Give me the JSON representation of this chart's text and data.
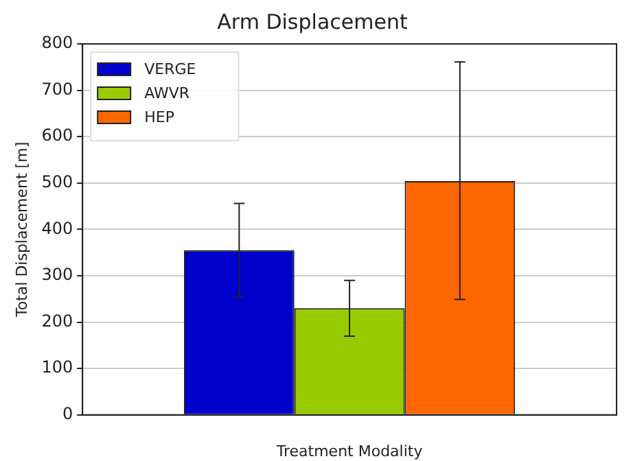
{
  "chart_data": {
    "type": "bar",
    "title": "Arm Displacement",
    "xlabel": "Treatment Modality",
    "ylabel": "Total Displacement [m]",
    "categories": [
      null
    ],
    "series": [
      {
        "name": "VERGE",
        "color": "#0000cc",
        "values": [
          355
        ],
        "errors": [
          [
            254,
            456
          ]
        ]
      },
      {
        "name": "AWVR",
        "color": "#99cc00",
        "values": [
          230
        ],
        "errors": [
          [
            170,
            290
          ]
        ]
      },
      {
        "name": "HEP",
        "color": "#ff6600",
        "values": [
          504
        ],
        "errors": [
          [
            249,
            761
          ]
        ]
      }
    ],
    "ylim": [
      0,
      800
    ],
    "yticks": [
      0,
      100,
      200,
      300,
      400,
      500,
      600,
      700,
      800
    ],
    "grid": "y",
    "legend": "top left"
  }
}
